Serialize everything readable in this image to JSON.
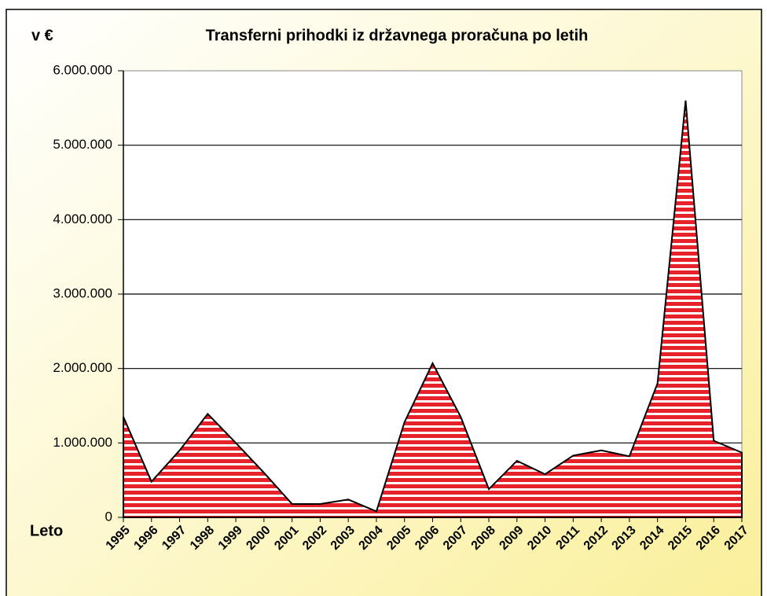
{
  "chart_data": {
    "type": "area",
    "title": "Transferni prihodki iz državnega proračuna po letih",
    "y_label": "v €",
    "x_label": "Leto",
    "categories": [
      "1995",
      "1996",
      "1997",
      "1998",
      "1999",
      "2000",
      "2001",
      "2002",
      "2003",
      "2004",
      "2005",
      "2006",
      "2007",
      "2008",
      "2009",
      "2010",
      "2011",
      "2012",
      "2013",
      "2014",
      "2015",
      "2016",
      "2017"
    ],
    "values": [
      1350000,
      480000,
      900000,
      1390000,
      1000000,
      600000,
      180000,
      180000,
      240000,
      80000,
      1280000,
      2070000,
      1350000,
      380000,
      760000,
      580000,
      830000,
      900000,
      820000,
      1800000,
      5600000,
      1030000,
      870000
    ],
    "color": "#e8222a",
    "ylim": [
      0,
      6000000
    ],
    "yticks": [
      0,
      {
        "value": 1000000,
        "label": "1.000.000"
      },
      {
        "value": 2000000,
        "label": "2.000.000"
      },
      {
        "value": 3000000,
        "label": "3.000.000"
      },
      {
        "value": 4000000,
        "label": "4.000.000"
      },
      {
        "value": 5000000,
        "label": "5.000.000"
      },
      {
        "value": 6000000,
        "label": "6.000.000"
      }
    ],
    "grid": true
  }
}
